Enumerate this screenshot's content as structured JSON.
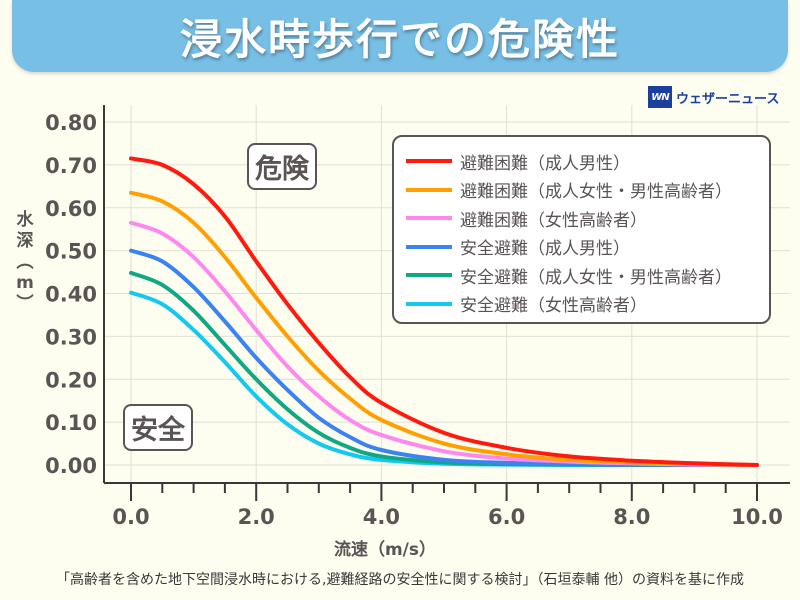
{
  "banner": {
    "title": "浸水時歩行での危険性"
  },
  "brand": {
    "logo": "WN",
    "name": "ウェザーニュース"
  },
  "zones": {
    "danger": "危険",
    "safe": "安全"
  },
  "footnote": "「高齢者を含めた地下空間浸水時における,避難経路の安全性に関する検討」（石垣泰輔 他）の資料を基に作成",
  "chart_data": {
    "type": "line",
    "title": "浸水時歩行での危険性",
    "xlabel": "流速（m/s）",
    "ylabel": "水深（m）",
    "xlim": [
      0,
      10
    ],
    "ylim": [
      0,
      0.8
    ],
    "xticks": [
      "0.0",
      "2.0",
      "4.0",
      "6.0",
      "8.0",
      "10.0"
    ],
    "xtick_values": [
      0,
      2,
      4,
      6,
      8,
      10
    ],
    "yticks": [
      "0.00",
      "0.10",
      "0.20",
      "0.30",
      "0.40",
      "0.50",
      "0.60",
      "0.70",
      "0.80"
    ],
    "ytick_values": [
      0,
      0.1,
      0.2,
      0.3,
      0.4,
      0.5,
      0.6,
      0.7,
      0.8
    ],
    "grid": true,
    "legend_position": "top-right",
    "x": [
      0,
      0.5,
      1.0,
      1.5,
      2.0,
      2.5,
      3.0,
      3.5,
      4.0,
      5.0,
      6.0,
      7.0,
      8.0,
      9.0,
      10.0
    ],
    "series": [
      {
        "name": "避難困難（成人男性）",
        "color": "#ff1a0f",
        "values": [
          0.715,
          0.7,
          0.655,
          0.58,
          0.475,
          0.375,
          0.285,
          0.205,
          0.145,
          0.075,
          0.04,
          0.02,
          0.01,
          0.004,
          0.0
        ]
      },
      {
        "name": "避難困難（成人女性・男性高齢者）",
        "color": "#ffa000",
        "values": [
          0.635,
          0.615,
          0.565,
          0.485,
          0.39,
          0.3,
          0.22,
          0.155,
          0.105,
          0.05,
          0.025,
          0.012,
          0.006,
          0.002,
          0.0
        ]
      },
      {
        "name": "避難困難（女性高齢者）",
        "color": "#ff88ee",
        "values": [
          0.565,
          0.54,
          0.485,
          0.405,
          0.315,
          0.23,
          0.16,
          0.105,
          0.07,
          0.032,
          0.015,
          0.008,
          0.004,
          0.001,
          0.0
        ]
      },
      {
        "name": "安全避難（成人男性）",
        "color": "#3c82f0",
        "values": [
          0.5,
          0.475,
          0.415,
          0.335,
          0.25,
          0.175,
          0.11,
          0.065,
          0.035,
          0.012,
          0.005,
          0.002,
          0.001,
          0.0,
          0.0
        ]
      },
      {
        "name": "安全避難（成人女性・男性高齢者）",
        "color": "#10a884",
        "values": [
          0.448,
          0.42,
          0.36,
          0.28,
          0.2,
          0.13,
          0.075,
          0.04,
          0.02,
          0.006,
          0.002,
          0.001,
          0.0,
          0.0,
          0.0
        ]
      },
      {
        "name": "安全避難（女性高齢者）",
        "color": "#14c8f0",
        "values": [
          0.402,
          0.375,
          0.315,
          0.24,
          0.16,
          0.095,
          0.05,
          0.025,
          0.012,
          0.003,
          0.001,
          0.0,
          0.0,
          0.0,
          0.0
        ]
      }
    ]
  }
}
